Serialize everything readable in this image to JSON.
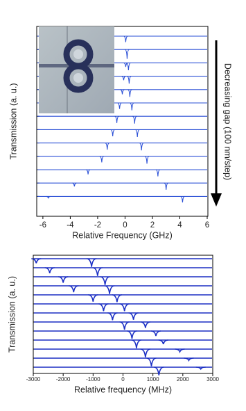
{
  "chart_data": [
    {
      "type": "spectra",
      "xlabel": "Relative Frequency (GHz)",
      "ylabel": "Transmission (a. u.)",
      "annotation": "Decreasing gap (100 nm/step)",
      "color": "#2a4fd6",
      "xlim": [
        -6.45,
        6.05
      ],
      "xticks": [
        -6,
        -4,
        -2,
        0,
        2,
        4,
        6
      ],
      "traces": [
        {
          "dips": [
            0.05
          ],
          "depths": [
            0.45
          ]
        },
        {
          "dips": [
            0.15
          ],
          "depths": [
            0.7
          ]
        },
        {
          "dips": [
            0.05,
            0.25
          ],
          "depths": [
            0.3,
            0.55
          ]
        },
        {
          "dips": [
            -0.1,
            0.3
          ],
          "depths": [
            0.3,
            0.55
          ]
        },
        {
          "dips": [
            -0.2,
            0.35
          ],
          "depths": [
            0.35,
            0.55
          ]
        },
        {
          "dips": [
            -0.4,
            0.5
          ],
          "depths": [
            0.45,
            0.55
          ]
        },
        {
          "dips": [
            -0.6,
            0.7
          ],
          "depths": [
            0.5,
            0.55
          ]
        },
        {
          "dips": [
            -0.9,
            0.9
          ],
          "depths": [
            0.5,
            0.55
          ]
        },
        {
          "dips": [
            -1.3,
            1.2
          ],
          "depths": [
            0.5,
            0.55
          ]
        },
        {
          "dips": [
            -1.7,
            1.6
          ],
          "depths": [
            0.45,
            0.55
          ]
        },
        {
          "dips": [
            -2.7,
            2.4
          ],
          "depths": [
            0.35,
            0.5
          ]
        },
        {
          "dips": [
            -3.7,
            3.0
          ],
          "depths": [
            0.25,
            0.5
          ]
        },
        {
          "dips": [
            -5.6,
            4.2
          ],
          "depths": [
            0.15,
            0.45
          ]
        }
      ]
    },
    {
      "type": "spectra",
      "xlabel": "Relative frequency (MHz)",
      "ylabel": "Transmission (a. u.)",
      "color": "#1b2fc4",
      "xlim": [
        -3000,
        3000
      ],
      "xticks": [
        -3000,
        -2000,
        -1000,
        0,
        1000,
        2000,
        3000
      ],
      "traces": [
        {
          "dips": [
            -2900,
            -1050
          ],
          "depths": [
            0.5,
            0.9
          ]
        },
        {
          "dips": [
            -2450,
            -850
          ],
          "depths": [
            0.6,
            0.9
          ]
        },
        {
          "dips": [
            -2000,
            -600
          ],
          "depths": [
            0.65,
            0.9
          ]
        },
        {
          "dips": [
            -1650,
            -450
          ],
          "depths": [
            0.7,
            0.9
          ]
        },
        {
          "dips": [
            -1000,
            -200
          ],
          "depths": [
            0.75,
            0.8
          ]
        },
        {
          "dips": [
            -650,
            50
          ],
          "depths": [
            0.8,
            0.8
          ]
        },
        {
          "dips": [
            -350,
            350
          ],
          "depths": [
            0.8,
            0.75
          ]
        },
        {
          "dips": [
            50,
            750
          ],
          "depths": [
            0.85,
            0.65
          ]
        },
        {
          "dips": [
            300,
            1100
          ],
          "depths": [
            0.85,
            0.55
          ]
        },
        {
          "dips": [
            450,
            1350
          ],
          "depths": [
            0.9,
            0.45
          ]
        },
        {
          "dips": [
            750,
            1900
          ],
          "depths": [
            0.9,
            0.3
          ]
        },
        {
          "dips": [
            950,
            2200
          ],
          "depths": [
            0.9,
            0.25
          ]
        },
        {
          "dips": [
            1200,
            2600
          ],
          "depths": [
            0.9,
            0.2
          ]
        }
      ]
    }
  ]
}
